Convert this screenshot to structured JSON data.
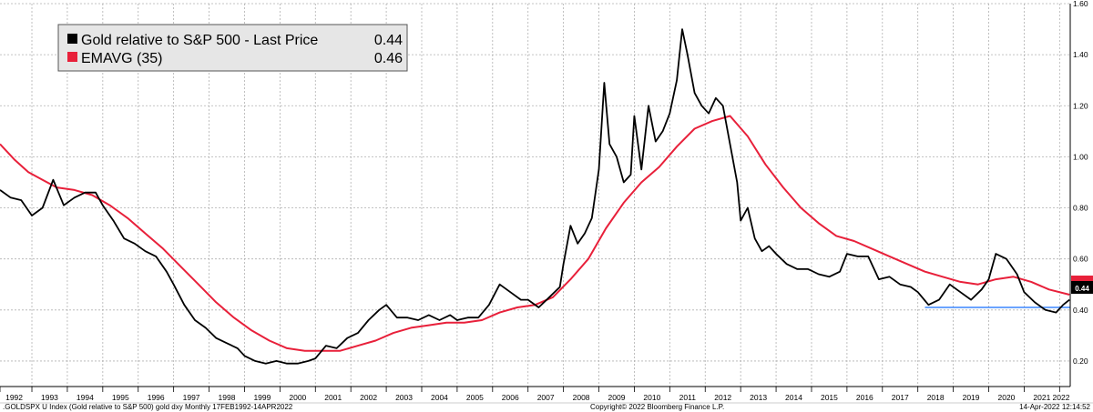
{
  "chart_data": {
    "type": "line",
    "xlim": [
      1992.1,
      2022.3
    ],
    "ylim": [
      0.1,
      1.6
    ],
    "y_ticks": [
      0.2,
      0.4,
      0.6,
      0.8,
      1.0,
      1.2,
      1.4,
      1.6
    ],
    "y_tick_labels": [
      "0.20",
      "0.40",
      "0.60",
      "0.80",
      "1.00",
      "1.20",
      "1.40",
      "1.60"
    ],
    "x_year_labels": [
      "1992",
      "1993",
      "1994",
      "1995",
      "1996",
      "1997",
      "1998",
      "1999",
      "2000",
      "2001",
      "2002",
      "2003",
      "2004",
      "2005",
      "2006",
      "2007",
      "2008",
      "2009",
      "2010",
      "2011",
      "2012",
      "2013",
      "2014",
      "2015",
      "2016",
      "2017",
      "2018",
      "2019",
      "2020",
      "2021",
      "2022"
    ],
    "grid": true,
    "legend_position": "top-left",
    "colors": {
      "gold": "#000000",
      "ema": "#e8203a",
      "support": "#3a86ff",
      "grid": "#b0b0b0"
    },
    "legend": [
      {
        "label": "Gold relative to S&P 500 - Last Price",
        "value": "0.44",
        "color": "#000000"
      },
      {
        "label": "EMAVG (35)",
        "value": "0.46",
        "color": "#e8203a"
      }
    ],
    "last_price_badge": "0.44",
    "series": [
      {
        "name": "Gold relative to S&P 500 - Last Price",
        "color": "#000000",
        "points": [
          [
            1992.1,
            0.87
          ],
          [
            1992.4,
            0.84
          ],
          [
            1992.7,
            0.83
          ],
          [
            1993.0,
            0.77
          ],
          [
            1993.3,
            0.8
          ],
          [
            1993.6,
            0.91
          ],
          [
            1993.9,
            0.81
          ],
          [
            1994.2,
            0.84
          ],
          [
            1994.5,
            0.86
          ],
          [
            1994.8,
            0.86
          ],
          [
            1995.0,
            0.81
          ],
          [
            1995.3,
            0.75
          ],
          [
            1995.6,
            0.68
          ],
          [
            1995.9,
            0.66
          ],
          [
            1996.2,
            0.63
          ],
          [
            1996.5,
            0.61
          ],
          [
            1996.8,
            0.55
          ],
          [
            1997.0,
            0.5
          ],
          [
            1997.3,
            0.42
          ],
          [
            1997.6,
            0.36
          ],
          [
            1997.9,
            0.33
          ],
          [
            1998.2,
            0.29
          ],
          [
            1998.5,
            0.27
          ],
          [
            1998.8,
            0.25
          ],
          [
            1999.0,
            0.22
          ],
          [
            1999.3,
            0.2
          ],
          [
            1999.6,
            0.19
          ],
          [
            1999.9,
            0.2
          ],
          [
            2000.2,
            0.19
          ],
          [
            2000.5,
            0.19
          ],
          [
            2000.8,
            0.2
          ],
          [
            2001.0,
            0.21
          ],
          [
            2001.3,
            0.26
          ],
          [
            2001.6,
            0.25
          ],
          [
            2001.9,
            0.29
          ],
          [
            2002.2,
            0.31
          ],
          [
            2002.5,
            0.36
          ],
          [
            2002.8,
            0.4
          ],
          [
            2003.0,
            0.42
          ],
          [
            2003.3,
            0.37
          ],
          [
            2003.6,
            0.37
          ],
          [
            2003.9,
            0.36
          ],
          [
            2004.2,
            0.38
          ],
          [
            2004.5,
            0.36
          ],
          [
            2004.8,
            0.38
          ],
          [
            2005.0,
            0.36
          ],
          [
            2005.3,
            0.37
          ],
          [
            2005.6,
            0.37
          ],
          [
            2005.9,
            0.42
          ],
          [
            2006.2,
            0.5
          ],
          [
            2006.5,
            0.47
          ],
          [
            2006.8,
            0.44
          ],
          [
            2007.0,
            0.44
          ],
          [
            2007.3,
            0.41
          ],
          [
            2007.6,
            0.45
          ],
          [
            2007.9,
            0.49
          ],
          [
            2008.0,
            0.58
          ],
          [
            2008.2,
            0.73
          ],
          [
            2008.4,
            0.66
          ],
          [
            2008.6,
            0.7
          ],
          [
            2008.8,
            0.76
          ],
          [
            2009.0,
            0.95
          ],
          [
            2009.15,
            1.29
          ],
          [
            2009.3,
            1.05
          ],
          [
            2009.5,
            1.0
          ],
          [
            2009.7,
            0.9
          ],
          [
            2009.9,
            0.93
          ],
          [
            2010.0,
            1.16
          ],
          [
            2010.2,
            0.95
          ],
          [
            2010.4,
            1.2
          ],
          [
            2010.6,
            1.06
          ],
          [
            2010.8,
            1.1
          ],
          [
            2011.0,
            1.17
          ],
          [
            2011.2,
            1.3
          ],
          [
            2011.35,
            1.5
          ],
          [
            2011.5,
            1.4
          ],
          [
            2011.7,
            1.25
          ],
          [
            2011.9,
            1.2
          ],
          [
            2012.1,
            1.17
          ],
          [
            2012.3,
            1.23
          ],
          [
            2012.5,
            1.2
          ],
          [
            2012.7,
            1.05
          ],
          [
            2012.9,
            0.9
          ],
          [
            2013.0,
            0.75
          ],
          [
            2013.2,
            0.8
          ],
          [
            2013.4,
            0.68
          ],
          [
            2013.6,
            0.63
          ],
          [
            2013.8,
            0.65
          ],
          [
            2014.0,
            0.62
          ],
          [
            2014.3,
            0.58
          ],
          [
            2014.6,
            0.56
          ],
          [
            2014.9,
            0.56
          ],
          [
            2015.2,
            0.54
          ],
          [
            2015.5,
            0.53
          ],
          [
            2015.8,
            0.55
          ],
          [
            2016.0,
            0.62
          ],
          [
            2016.3,
            0.61
          ],
          [
            2016.6,
            0.61
          ],
          [
            2016.9,
            0.52
          ],
          [
            2017.2,
            0.53
          ],
          [
            2017.5,
            0.5
          ],
          [
            2017.8,
            0.49
          ],
          [
            2018.0,
            0.47
          ],
          [
            2018.3,
            0.42
          ],
          [
            2018.6,
            0.44
          ],
          [
            2018.9,
            0.5
          ],
          [
            2019.2,
            0.47
          ],
          [
            2019.5,
            0.44
          ],
          [
            2019.8,
            0.48
          ],
          [
            2020.0,
            0.52
          ],
          [
            2020.2,
            0.62
          ],
          [
            2020.5,
            0.6
          ],
          [
            2020.8,
            0.54
          ],
          [
            2021.0,
            0.47
          ],
          [
            2021.3,
            0.43
          ],
          [
            2021.6,
            0.4
          ],
          [
            2021.9,
            0.39
          ],
          [
            2022.1,
            0.42
          ],
          [
            2022.28,
            0.44
          ]
        ]
      },
      {
        "name": "EMAVG (35)",
        "color": "#e8203a",
        "points": [
          [
            1992.1,
            1.05
          ],
          [
            1992.5,
            0.99
          ],
          [
            1992.9,
            0.94
          ],
          [
            1993.3,
            0.91
          ],
          [
            1993.7,
            0.88
          ],
          [
            1994.2,
            0.87
          ],
          [
            1994.7,
            0.85
          ],
          [
            1995.2,
            0.81
          ],
          [
            1995.7,
            0.76
          ],
          [
            1996.2,
            0.7
          ],
          [
            1996.7,
            0.64
          ],
          [
            1997.2,
            0.57
          ],
          [
            1997.7,
            0.5
          ],
          [
            1998.2,
            0.43
          ],
          [
            1998.7,
            0.37
          ],
          [
            1999.2,
            0.32
          ],
          [
            1999.7,
            0.28
          ],
          [
            2000.2,
            0.25
          ],
          [
            2000.7,
            0.24
          ],
          [
            2001.2,
            0.24
          ],
          [
            2001.7,
            0.24
          ],
          [
            2002.2,
            0.26
          ],
          [
            2002.7,
            0.28
          ],
          [
            2003.2,
            0.31
          ],
          [
            2003.7,
            0.33
          ],
          [
            2004.2,
            0.34
          ],
          [
            2004.7,
            0.35
          ],
          [
            2005.2,
            0.35
          ],
          [
            2005.7,
            0.36
          ],
          [
            2006.2,
            0.39
          ],
          [
            2006.7,
            0.41
          ],
          [
            2007.2,
            0.42
          ],
          [
            2007.7,
            0.45
          ],
          [
            2008.2,
            0.52
          ],
          [
            2008.7,
            0.6
          ],
          [
            2009.2,
            0.72
          ],
          [
            2009.7,
            0.82
          ],
          [
            2010.2,
            0.9
          ],
          [
            2010.7,
            0.96
          ],
          [
            2011.2,
            1.04
          ],
          [
            2011.7,
            1.11
          ],
          [
            2012.2,
            1.14
          ],
          [
            2012.7,
            1.16
          ],
          [
            2013.2,
            1.08
          ],
          [
            2013.7,
            0.97
          ],
          [
            2014.2,
            0.88
          ],
          [
            2014.7,
            0.8
          ],
          [
            2015.2,
            0.74
          ],
          [
            2015.7,
            0.69
          ],
          [
            2016.2,
            0.67
          ],
          [
            2016.7,
            0.64
          ],
          [
            2017.2,
            0.61
          ],
          [
            2017.7,
            0.58
          ],
          [
            2018.2,
            0.55
          ],
          [
            2018.7,
            0.53
          ],
          [
            2019.2,
            0.51
          ],
          [
            2019.7,
            0.5
          ],
          [
            2020.2,
            0.52
          ],
          [
            2020.7,
            0.53
          ],
          [
            2021.2,
            0.51
          ],
          [
            2021.7,
            0.48
          ],
          [
            2022.28,
            0.46
          ]
        ]
      }
    ],
    "support_line": {
      "x": [
        2018.2,
        2022.3
      ],
      "y": 0.41
    },
    "footer_left": ".GOLDSPX U Index (Gold relative to S&P 500) gold dxy  Monthly 17FEB1992-14APR2022",
    "footer_center": "Copyright© 2022 Bloomberg Finance L.P.",
    "footer_right": "14-Apr-2022 12:14:52"
  }
}
